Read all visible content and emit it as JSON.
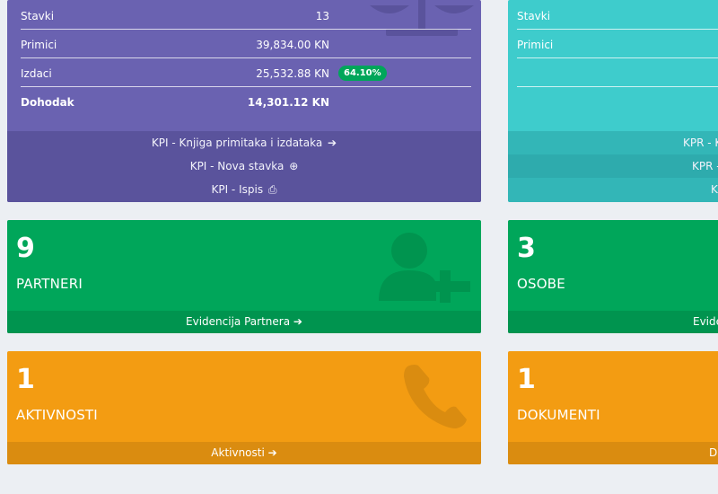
{
  "kpi": {
    "rows": [
      {
        "label": "Stavki",
        "value": "13"
      },
      {
        "label": "Primici",
        "value": "39,834.00 KN"
      },
      {
        "label": "Izdaci",
        "value": "25,532.88 KN",
        "badge": "64.10%"
      },
      {
        "label": "Dohodak",
        "value": "14,301.12 KN"
      }
    ],
    "links": [
      {
        "label": "KPI - Knjiga primitaka i izdataka",
        "icon": "arrow-circle-right-icon"
      },
      {
        "label": "KPI - Nova stavka",
        "icon": "plus-circle-icon"
      },
      {
        "label": "KPI - Ispis",
        "icon": "print-icon"
      }
    ],
    "icon": "balance-scale-icon"
  },
  "kpr": {
    "rows": [
      {
        "label": "Stavki"
      },
      {
        "label": "Primici"
      }
    ],
    "links": [
      {
        "label": "KPR - K"
      },
      {
        "label": "KPR -"
      },
      {
        "label": "K"
      }
    ]
  },
  "stats": [
    {
      "count": "9",
      "title": "PARTNERI",
      "link": "Evidencija Partnera",
      "icon": "user-plus-icon",
      "color": "#00a65a"
    },
    {
      "count": "3",
      "title": "OSOBE",
      "link": "Evide",
      "color": "#00a65a"
    },
    {
      "count": "1",
      "title": "AKTIVNOSTI",
      "link": "Aktivnosti",
      "icon": "phone-icon",
      "color": "#f39c12"
    },
    {
      "count": "1",
      "title": "DOKUMENTI",
      "link": "D",
      "color": "#f39c12"
    }
  ],
  "colors": {
    "kpi_bg": "#6a62b1",
    "kpr_bg": "#3ecccc",
    "green": "#00a65a",
    "orange": "#f39c12",
    "page_bg": "#eceff3"
  }
}
